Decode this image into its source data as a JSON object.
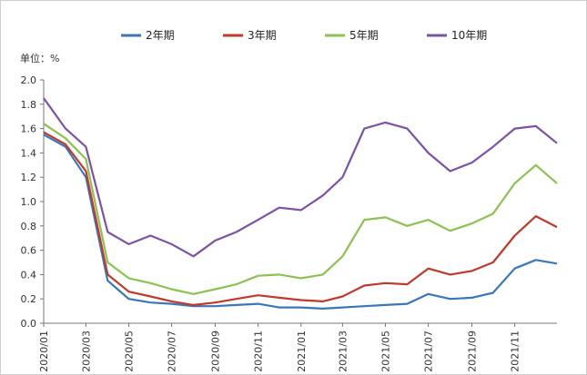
{
  "chart_data": {
    "type": "line",
    "unit_label": "单位：%",
    "ylim": [
      0.0,
      2.0
    ],
    "y_ticks": [
      0.0,
      0.2,
      0.4,
      0.6,
      0.8,
      1.0,
      1.2,
      1.4,
      1.6,
      1.8,
      2.0
    ],
    "y_tick_labels": [
      "0.0",
      "0.2",
      "0.4",
      "0.6",
      "0.8",
      "1.0",
      "1.2",
      "1.4",
      "1.6",
      "1.8",
      "2.0"
    ],
    "x_tick_labels": [
      "2020/01",
      "2020/03",
      "2020/05",
      "2020/07",
      "2020/09",
      "2020/11",
      "2021/01",
      "2021/03",
      "2021/05",
      "2021/07",
      "2021/09",
      "2021/11"
    ],
    "legend_position": "top",
    "series": [
      {
        "name": "2年期",
        "color": "#3b76b8",
        "points": [
          [
            "2020/01",
            1.55
          ],
          [
            "2020/02",
            1.45
          ],
          [
            "2020/03",
            1.2
          ],
          [
            "2020/04",
            0.35
          ],
          [
            "2020/05",
            0.2
          ],
          [
            "2020/06",
            0.17
          ],
          [
            "2020/07",
            0.16
          ],
          [
            "2020/08",
            0.14
          ],
          [
            "2020/09",
            0.14
          ],
          [
            "2020/10",
            0.15
          ],
          [
            "2020/11",
            0.16
          ],
          [
            "2020/12",
            0.13
          ],
          [
            "2021/01",
            0.13
          ],
          [
            "2021/02",
            0.12
          ],
          [
            "2021/03",
            0.13
          ],
          [
            "2021/04",
            0.14
          ],
          [
            "2021/05",
            0.15
          ],
          [
            "2021/06",
            0.16
          ],
          [
            "2021/07",
            0.24
          ],
          [
            "2021/08",
            0.2
          ],
          [
            "2021/09",
            0.21
          ],
          [
            "2021/10",
            0.25
          ],
          [
            "2021/11",
            0.45
          ],
          [
            "2021/12",
            0.52
          ],
          [
            "2021/12/31",
            0.49
          ]
        ]
      },
      {
        "name": "3年期",
        "color": "#c0392b",
        "points": [
          [
            "2020/01",
            1.57
          ],
          [
            "2020/02",
            1.47
          ],
          [
            "2020/03",
            1.25
          ],
          [
            "2020/04",
            0.4
          ],
          [
            "2020/05",
            0.26
          ],
          [
            "2020/06",
            0.22
          ],
          [
            "2020/07",
            0.18
          ],
          [
            "2020/08",
            0.15
          ],
          [
            "2020/09",
            0.17
          ],
          [
            "2020/10",
            0.2
          ],
          [
            "2020/11",
            0.23
          ],
          [
            "2020/12",
            0.21
          ],
          [
            "2021/01",
            0.19
          ],
          [
            "2021/02",
            0.18
          ],
          [
            "2021/03",
            0.22
          ],
          [
            "2021/04",
            0.31
          ],
          [
            "2021/05",
            0.33
          ],
          [
            "2021/06",
            0.32
          ],
          [
            "2021/07",
            0.45
          ],
          [
            "2021/08",
            0.4
          ],
          [
            "2021/09",
            0.43
          ],
          [
            "2021/10",
            0.5
          ],
          [
            "2021/11",
            0.72
          ],
          [
            "2021/12",
            0.88
          ],
          [
            "2021/12/31",
            0.79
          ]
        ]
      },
      {
        "name": "5年期",
        "color": "#8dc152",
        "points": [
          [
            "2020/01",
            1.64
          ],
          [
            "2020/02",
            1.52
          ],
          [
            "2020/03",
            1.35
          ],
          [
            "2020/04",
            0.5
          ],
          [
            "2020/05",
            0.37
          ],
          [
            "2020/06",
            0.33
          ],
          [
            "2020/07",
            0.28
          ],
          [
            "2020/08",
            0.24
          ],
          [
            "2020/09",
            0.28
          ],
          [
            "2020/10",
            0.32
          ],
          [
            "2020/11",
            0.39
          ],
          [
            "2020/12",
            0.4
          ],
          [
            "2021/01",
            0.37
          ],
          [
            "2021/02",
            0.4
          ],
          [
            "2021/03",
            0.55
          ],
          [
            "2021/04",
            0.85
          ],
          [
            "2021/05",
            0.87
          ],
          [
            "2021/06",
            0.8
          ],
          [
            "2021/07",
            0.85
          ],
          [
            "2021/08",
            0.76
          ],
          [
            "2021/09",
            0.82
          ],
          [
            "2021/10",
            0.9
          ],
          [
            "2021/11",
            1.15
          ],
          [
            "2021/12",
            1.3
          ],
          [
            "2021/12/31",
            1.15
          ]
        ]
      },
      {
        "name": "10年期",
        "color": "#7b52a6",
        "points": [
          [
            "2020/01",
            1.85
          ],
          [
            "2020/02",
            1.6
          ],
          [
            "2020/03",
            1.45
          ],
          [
            "2020/04",
            0.75
          ],
          [
            "2020/05",
            0.65
          ],
          [
            "2020/06",
            0.72
          ],
          [
            "2020/07",
            0.65
          ],
          [
            "2020/08",
            0.55
          ],
          [
            "2020/09",
            0.68
          ],
          [
            "2020/10",
            0.75
          ],
          [
            "2020/11",
            0.85
          ],
          [
            "2020/12",
            0.95
          ],
          [
            "2021/01",
            0.93
          ],
          [
            "2021/02",
            1.05
          ],
          [
            "2021/03",
            1.2
          ],
          [
            "2021/04",
            1.6
          ],
          [
            "2021/05",
            1.65
          ],
          [
            "2021/06",
            1.6
          ],
          [
            "2021/07",
            1.4
          ],
          [
            "2021/08",
            1.25
          ],
          [
            "2021/09",
            1.32
          ],
          [
            "2021/10",
            1.45
          ],
          [
            "2021/11",
            1.6
          ],
          [
            "2021/12",
            1.62
          ],
          [
            "2021/12/31",
            1.48
          ]
        ]
      }
    ]
  }
}
